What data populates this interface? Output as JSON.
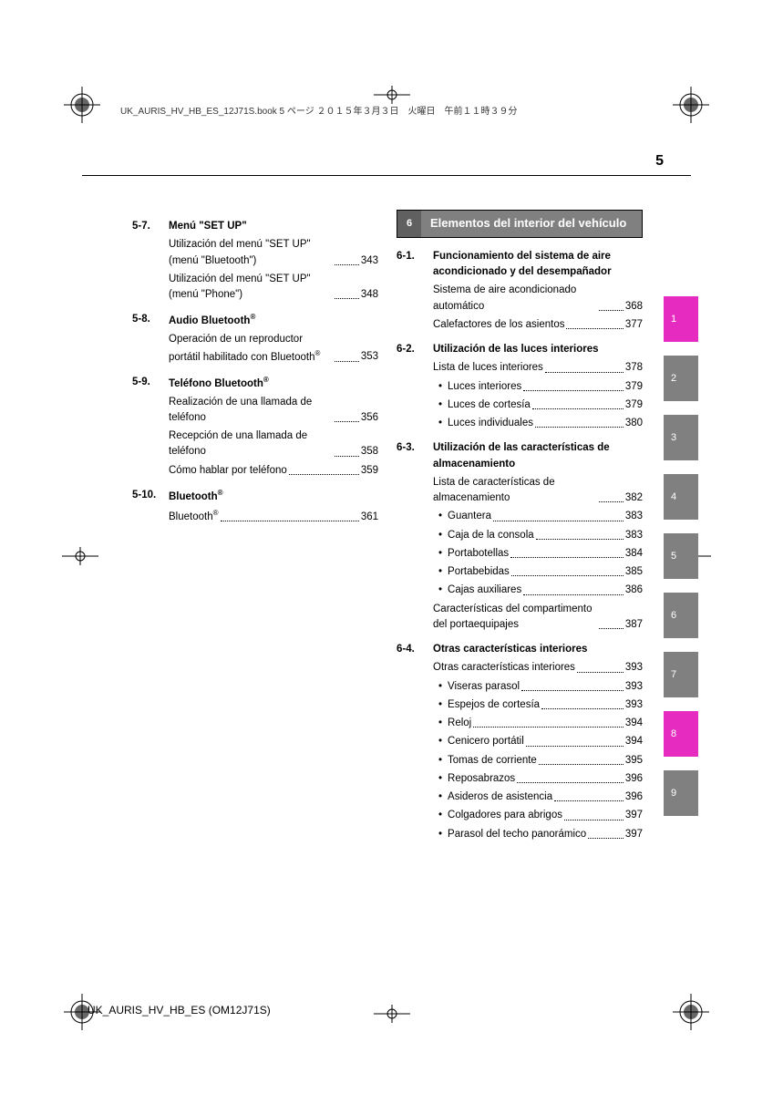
{
  "header": "UK_AURIS_HV_HB_ES_12J71S.book  5 ページ  ２０１５年３月３日　火曜日　午前１１時３９分",
  "pageNumber": "5",
  "footer": "UK_AURIS_HV_HB_ES (OM12J71S)",
  "colors": {
    "tabGray": "#808080",
    "tabMagenta": "#e62cc0"
  },
  "left": [
    {
      "num": "5-7.",
      "title": "Menú \"SET UP\"",
      "entries": [
        {
          "text": "Utilización del menú \"SET UP\" (menú \"Bluetooth\")",
          "page": "343"
        },
        {
          "text": "Utilización del menú \"SET UP\" (menú \"Phone\")",
          "page": "348"
        }
      ]
    },
    {
      "num": "5-8.",
      "title": "Audio Bluetooth",
      "reg": true,
      "entries": [
        {
          "text": "Operación de un reproductor portátil habilitado con Bluetooth",
          "regText": true,
          "page": "353"
        }
      ]
    },
    {
      "num": "5-9.",
      "title": "Teléfono Bluetooth",
      "reg": true,
      "entries": [
        {
          "text": "Realización de una llamada de teléfono",
          "page": "356"
        },
        {
          "text": "Recepción de una llamada de teléfono",
          "page": "358"
        },
        {
          "text": "Cómo hablar por teléfono",
          "page": "359"
        }
      ]
    },
    {
      "num": "5-10.",
      "title": "Bluetooth",
      "reg": true,
      "entries": [
        {
          "text": "Bluetooth",
          "regText": true,
          "page": "361"
        }
      ]
    }
  ],
  "chapter": {
    "num": "6",
    "title": "Elementos del interior del vehículo"
  },
  "right": [
    {
      "num": "6-1.",
      "title": "Funcionamiento del sistema de aire acondicionado y del desempañador",
      "entries": [
        {
          "text": "Sistema de aire acondicionado automático",
          "page": "368"
        },
        {
          "text": "Calefactores de los asientos",
          "page": "377"
        }
      ]
    },
    {
      "num": "6-2.",
      "title": "Utilización de las luces interiores",
      "entries": [
        {
          "text": "Lista de luces interiores",
          "page": "378"
        },
        {
          "text": "Luces interiores",
          "page": "379",
          "bullet": true
        },
        {
          "text": "Luces de cortesía",
          "page": "379",
          "bullet": true
        },
        {
          "text": "Luces individuales",
          "page": "380",
          "bullet": true
        }
      ]
    },
    {
      "num": "6-3.",
      "title": "Utilización de las características de almacenamiento",
      "entries": [
        {
          "text": "Lista de características de almacenamiento",
          "page": "382"
        },
        {
          "text": "Guantera",
          "page": "383",
          "bullet": true
        },
        {
          "text": "Caja de la consola",
          "page": "383",
          "bullet": true
        },
        {
          "text": "Portabotellas",
          "page": "384",
          "bullet": true
        },
        {
          "text": "Portabebidas",
          "page": "385",
          "bullet": true
        },
        {
          "text": "Cajas auxiliares",
          "page": "386",
          "bullet": true
        },
        {
          "text": "Características del compartimento del portaequipajes",
          "page": "387"
        }
      ]
    },
    {
      "num": "6-4.",
      "title": "Otras características interiores",
      "entries": [
        {
          "text": "Otras características interiores",
          "page": "393"
        },
        {
          "text": "Viseras parasol",
          "page": "393",
          "bullet": true
        },
        {
          "text": "Espejos de cortesía",
          "page": "393",
          "bullet": true
        },
        {
          "text": "Reloj",
          "page": "394",
          "bullet": true
        },
        {
          "text": "Cenicero portátil",
          "page": "394",
          "bullet": true
        },
        {
          "text": "Tomas de corriente",
          "page": "395",
          "bullet": true
        },
        {
          "text": "Reposabrazos",
          "page": "396",
          "bullet": true
        },
        {
          "text": "Asideros de asistencia",
          "page": "396",
          "bullet": true
        },
        {
          "text": "Colgadores para abrigos",
          "page": "397",
          "bullet": true
        },
        {
          "text": "Parasol del techo panorámico",
          "page": "397",
          "bullet": true
        }
      ]
    }
  ],
  "tabs": [
    {
      "n": "1",
      "color": "#e62cc0"
    },
    {
      "n": "2",
      "color": "#808080"
    },
    {
      "n": "3",
      "color": "#808080"
    },
    {
      "n": "4",
      "color": "#808080"
    },
    {
      "n": "5",
      "color": "#808080"
    },
    {
      "n": "6",
      "color": "#808080"
    },
    {
      "n": "7",
      "color": "#808080"
    },
    {
      "n": "8",
      "color": "#e62cc0"
    },
    {
      "n": "9",
      "color": "#808080"
    }
  ]
}
